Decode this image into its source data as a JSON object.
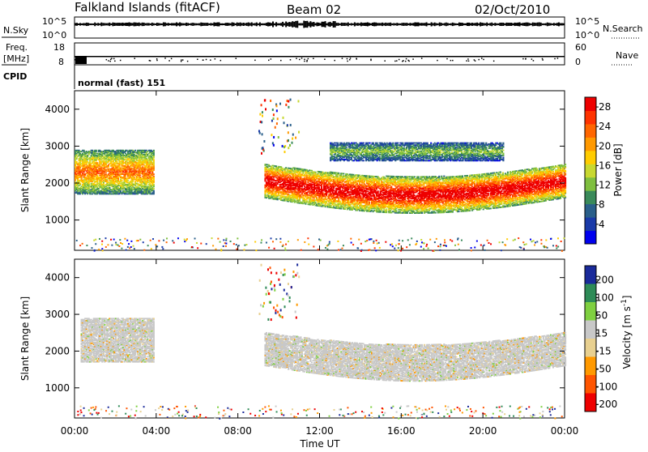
{
  "header": {
    "title": "Falkland Islands (fitACF)",
    "beam": "Beam 02",
    "date": "02/Oct/2010"
  },
  "panels": {
    "nsky": {
      "label": "N.Sky",
      "right_label": "N.Search",
      "left_ticks": [
        "10^5",
        "10^0"
      ],
      "right_ticks": [
        "10^5",
        "10^0"
      ]
    },
    "freq": {
      "label_line1": "Freq.",
      "label_line2": "[MHz]",
      "right_label": "Nave",
      "left_ticks": [
        "18",
        "8"
      ],
      "right_ticks": [
        "60",
        "0"
      ]
    },
    "cpid": {
      "label": "CPID",
      "value": "normal (fast) 151"
    }
  },
  "chart_data": [
    {
      "type": "heatmap",
      "title": "",
      "xlabel": "",
      "ylabel": "Slant Range [km]",
      "x_ticks": [
        "00:00",
        "04:00",
        "08:00",
        "12:00",
        "16:00",
        "20:00",
        "00:00"
      ],
      "xlim_hours": [
        0,
        24
      ],
      "y_ticks": [
        1000,
        2000,
        3000,
        4000
      ],
      "ylim_km": [
        180,
        4500
      ],
      "colorbar": {
        "label": "Power [dB]",
        "ticks": [
          4,
          8,
          12,
          16,
          20,
          24,
          28
        ],
        "range": [
          0,
          30
        ],
        "colors": [
          "#0000ee",
          "#1a3aa8",
          "#2a5f8a",
          "#3a8a5a",
          "#7fbf3f",
          "#c8d830",
          "#ffcc00",
          "#ff9900",
          "#ff6600",
          "#ff3300",
          "#ee0000"
        ]
      },
      "regions": [
        {
          "name": "early-morning echoes",
          "t_start": 0.0,
          "t_end": 3.9,
          "range_low": 1700,
          "range_high": 2900,
          "peak_db": 22
        },
        {
          "name": "daytime echo band",
          "t_start": 9.3,
          "t_end": 24.0,
          "range_low": 1300,
          "range_high": 2500,
          "peak_db": 30
        },
        {
          "name": "upper daytime band",
          "t_start": 12.5,
          "t_end": 21.0,
          "range_low": 2600,
          "range_high": 3100,
          "peak_db": 12
        }
      ]
    },
    {
      "type": "heatmap",
      "title": "",
      "xlabel": "Time UT",
      "ylabel": "Slant Range [km]",
      "x_ticks": [
        "00:00",
        "04:00",
        "08:00",
        "12:00",
        "16:00",
        "20:00",
        "00:00"
      ],
      "xlim_hours": [
        0,
        24
      ],
      "y_ticks": [
        1000,
        2000,
        3000,
        4000
      ],
      "ylim_km": [
        180,
        4500
      ],
      "colorbar": {
        "label": "Velocity [m s^-1]",
        "ticks": [
          200,
          100,
          50,
          15,
          -15,
          -50,
          -100,
          -200
        ],
        "colors": [
          "#1a2a9a",
          "#2e8b57",
          "#7fd040",
          "#c8c8c8",
          "#e8d090",
          "#ff9900",
          "#ff5500",
          "#ee0000"
        ]
      },
      "regions": [
        {
          "name": "early-morning echoes",
          "t_start": 0.3,
          "t_end": 3.9,
          "range_low": 1700,
          "range_high": 2900,
          "velocity": 0
        },
        {
          "name": "daytime echo band",
          "t_start": 9.3,
          "t_end": 24.0,
          "range_low": 1300,
          "range_high": 2500,
          "velocity": 0
        }
      ]
    }
  ],
  "colorbar_labels": {
    "power": "Power [dB]",
    "velocity_main": "Velocity [m s",
    "velocity_sup": "-1",
    "velocity_close": "]"
  },
  "xaxis_label": "Time UT"
}
